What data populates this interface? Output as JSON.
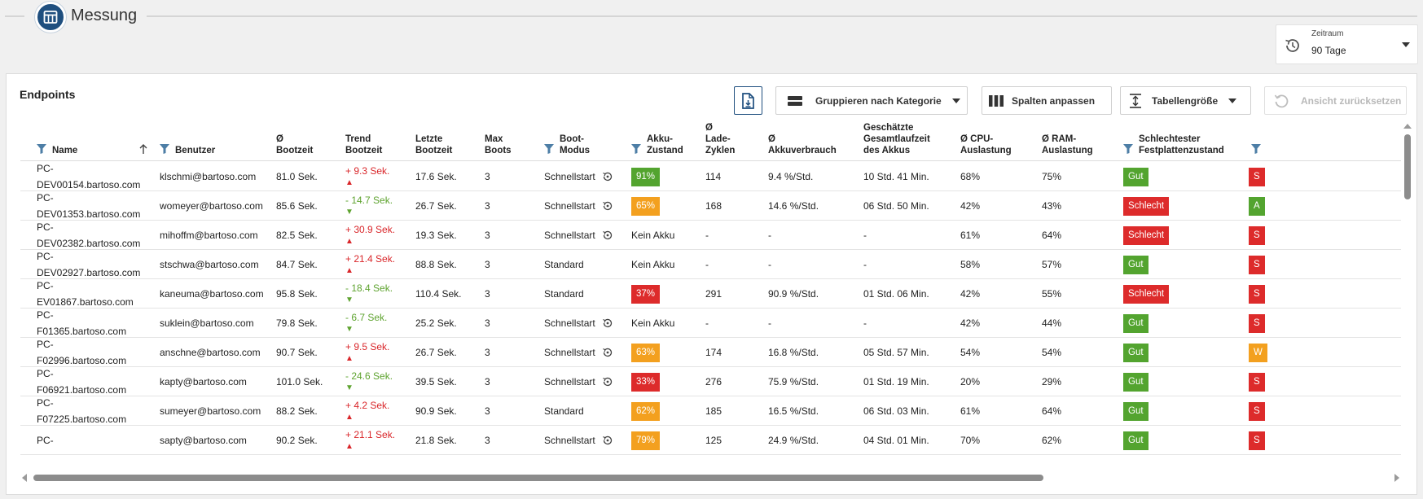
{
  "app": {
    "title": "Messung"
  },
  "zeitraum": {
    "label": "Zeitraum",
    "value": "90 Tage"
  },
  "panel": {
    "title": "Endpoints"
  },
  "toolbar": {
    "group_label": "Gruppieren nach Kategorie",
    "columns_label": "Spalten anpassen",
    "size_label": "Tabellengröße",
    "reset_label": "Ansicht zurücksetzen"
  },
  "colors": {
    "good": "#53a42f",
    "bad": "#dd2b2b",
    "warn": "#f3a01f",
    "brand": "#1f4f7f"
  },
  "columns": {
    "name": "Name",
    "benutzer": "Benutzer",
    "bootzeit_1": "Ø",
    "bootzeit_2": "Bootzeit",
    "trend_1": "Trend",
    "trend_2": "Bootzeit",
    "letzte_1": "Letzte",
    "letzte_2": "Bootzeit",
    "max_1": "Max",
    "max_2": "Boots",
    "modus_1": "Boot-",
    "modus_2": "Modus",
    "akku_1": "Akku-",
    "akku_2": "Zustand",
    "zyklen_1": "Ø",
    "zyklen_2": "Lade-",
    "zyklen_3": "Zyklen",
    "verbrauch_1": "Ø",
    "verbrauch_2": "Akkuverbrauch",
    "laufzeit_1": "Geschätzte",
    "laufzeit_2": "Gesamtlaufzeit",
    "laufzeit_3": "des Akkus",
    "cpu_1": "Ø CPU-",
    "cpu_2": "Auslastung",
    "ram_1": "Ø RAM-",
    "ram_2": "Auslastung",
    "disk_1": "Schlechtester",
    "disk_2": "Festplattenzustand"
  },
  "rows": [
    {
      "name1": "PC-",
      "name2": "DEV00154.bartoso.com",
      "user": "klschmi@bartoso.com",
      "boot": "81.0 Sek.",
      "trend": "+ 9.3 Sek.",
      "trend_dir": "up",
      "last": "17.6 Sek.",
      "max": "3",
      "mode": "Schnellstart",
      "mode_icon": true,
      "akku": "91%",
      "akku_color": "good",
      "cycles": "114",
      "usage": "9.4 %/Std.",
      "runtime": "10 Std. 41 Min.",
      "cpu": "68%",
      "ram": "75%",
      "disk": "Gut",
      "disk_color": "good",
      "extra": "S",
      "extra_color": "bad"
    },
    {
      "name1": "PC-",
      "name2": "DEV01353.bartoso.com",
      "user": "womeyer@bartoso.com",
      "boot": "85.6 Sek.",
      "trend": "- 14.7 Sek.",
      "trend_dir": "down",
      "last": "26.7 Sek.",
      "max": "3",
      "mode": "Schnellstart",
      "mode_icon": true,
      "akku": "65%",
      "akku_color": "warn",
      "cycles": "168",
      "usage": "14.6 %/Std.",
      "runtime": "06 Std. 50 Min.",
      "cpu": "42%",
      "ram": "43%",
      "disk": "Schlecht",
      "disk_color": "bad",
      "extra": "A",
      "extra_color": "good"
    },
    {
      "name1": "PC-",
      "name2": "DEV02382.bartoso.com",
      "user": "mihoffm@bartoso.com",
      "boot": "82.5 Sek.",
      "trend": "+ 30.9 Sek.",
      "trend_dir": "up",
      "last": "19.3 Sek.",
      "max": "3",
      "mode": "Schnellstart",
      "mode_icon": true,
      "akku": "Kein Akku",
      "akku_color": "",
      "cycles": "-",
      "usage": "-",
      "runtime": "-",
      "cpu": "61%",
      "ram": "64%",
      "disk": "Schlecht",
      "disk_color": "bad",
      "extra": "S",
      "extra_color": "bad"
    },
    {
      "name1": "PC-",
      "name2": "DEV02927.bartoso.com",
      "user": "stschwa@bartoso.com",
      "boot": "84.7 Sek.",
      "trend": "+ 21.4 Sek.",
      "trend_dir": "up",
      "last": "88.8 Sek.",
      "max": "3",
      "mode": "Standard",
      "mode_icon": false,
      "akku": "Kein Akku",
      "akku_color": "",
      "cycles": "-",
      "usage": "-",
      "runtime": "-",
      "cpu": "58%",
      "ram": "57%",
      "disk": "Gut",
      "disk_color": "good",
      "extra": "S",
      "extra_color": "bad"
    },
    {
      "name1": "PC-",
      "name2": "EV01867.bartoso.com",
      "user": "kaneuma@bartoso.com",
      "boot": "95.8 Sek.",
      "trend": "- 18.4 Sek.",
      "trend_dir": "down",
      "last": "110.4 Sek.",
      "max": "3",
      "mode": "Standard",
      "mode_icon": false,
      "akku": "37%",
      "akku_color": "bad",
      "cycles": "291",
      "usage": "90.9 %/Std.",
      "runtime": "01 Std. 06 Min.",
      "cpu": "42%",
      "ram": "55%",
      "disk": "Schlecht",
      "disk_color": "bad",
      "extra": "S",
      "extra_color": "bad"
    },
    {
      "name1": "PC-",
      "name2": "F01365.bartoso.com",
      "user": "suklein@bartoso.com",
      "boot": "79.8 Sek.",
      "trend": "- 6.7 Sek.",
      "trend_dir": "down",
      "last": "25.2 Sek.",
      "max": "3",
      "mode": "Schnellstart",
      "mode_icon": true,
      "akku": "Kein Akku",
      "akku_color": "",
      "cycles": "-",
      "usage": "-",
      "runtime": "-",
      "cpu": "42%",
      "ram": "44%",
      "disk": "Gut",
      "disk_color": "good",
      "extra": "S",
      "extra_color": "bad"
    },
    {
      "name1": "PC-",
      "name2": "F02996.bartoso.com",
      "user": "anschne@bartoso.com",
      "boot": "90.7 Sek.",
      "trend": "+ 9.5 Sek.",
      "trend_dir": "up",
      "last": "26.7 Sek.",
      "max": "3",
      "mode": "Schnellstart",
      "mode_icon": true,
      "akku": "63%",
      "akku_color": "warn",
      "cycles": "174",
      "usage": "16.8 %/Std.",
      "runtime": "05 Std. 57 Min.",
      "cpu": "54%",
      "ram": "54%",
      "disk": "Gut",
      "disk_color": "good",
      "extra": "W",
      "extra_color": "warn"
    },
    {
      "name1": "PC-",
      "name2": "F06921.bartoso.com",
      "user": "kapty@bartoso.com",
      "boot": "101.0 Sek.",
      "trend": "- 24.6 Sek.",
      "trend_dir": "down",
      "last": "39.5 Sek.",
      "max": "3",
      "mode": "Schnellstart",
      "mode_icon": true,
      "akku": "33%",
      "akku_color": "bad",
      "cycles": "276",
      "usage": "75.9 %/Std.",
      "runtime": "01 Std. 19 Min.",
      "cpu": "20%",
      "ram": "29%",
      "disk": "Gut",
      "disk_color": "good",
      "extra": "S",
      "extra_color": "bad"
    },
    {
      "name1": "PC-",
      "name2": "F07225.bartoso.com",
      "user": "sumeyer@bartoso.com",
      "boot": "88.2 Sek.",
      "trend": "+ 4.2 Sek.",
      "trend_dir": "up",
      "last": "90.9 Sek.",
      "max": "3",
      "mode": "Standard",
      "mode_icon": false,
      "akku": "62%",
      "akku_color": "warn",
      "cycles": "185",
      "usage": "16.5 %/Std.",
      "runtime": "06 Std. 03 Min.",
      "cpu": "61%",
      "ram": "64%",
      "disk": "Gut",
      "disk_color": "good",
      "extra": "S",
      "extra_color": "bad"
    },
    {
      "name1": "PC-",
      "name2": "",
      "user": "sapty@bartoso.com",
      "boot": "90.2 Sek.",
      "trend": "+ 21.1 Sek.",
      "trend_dir": "up",
      "last": "21.8 Sek.",
      "max": "3",
      "mode": "Schnellstart",
      "mode_icon": true,
      "akku": "79%",
      "akku_color": "warn",
      "cycles": "125",
      "usage": "24.9 %/Std.",
      "runtime": "04 Std. 01 Min.",
      "cpu": "70%",
      "ram": "62%",
      "disk": "Gut",
      "disk_color": "good",
      "extra": "S",
      "extra_color": "bad"
    }
  ]
}
